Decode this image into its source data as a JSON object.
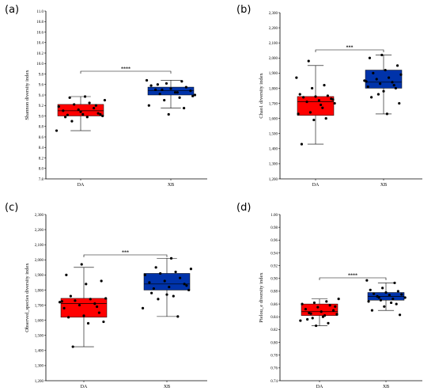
{
  "chart_data": [
    {
      "type": "box",
      "panel_label": "(a)",
      "title": "",
      "xlabel": "",
      "ylabel": "Shannon diversity index",
      "categories": [
        "DA",
        "XB"
      ],
      "ylim": [
        7.8,
        11.0
      ],
      "yticks": [
        "7.8",
        "8.0",
        "8.2",
        "8.4",
        "8.6",
        "8.8",
        "9.0",
        "9.2",
        "9.4",
        "9.6",
        "9.8",
        "10.0",
        "10.2",
        "10.4",
        "10.6",
        "10.8",
        "11.0"
      ],
      "significance": "****",
      "grid": false,
      "series": [
        {
          "category": "DA",
          "color": "#ff0000",
          "whisker_low": 8.72,
          "q1": 9.0,
          "median": 9.1,
          "q3": 9.22,
          "whisker_high": 9.37,
          "points": [
            8.72,
            8.9,
            8.98,
            9.0,
            9.02,
            9.03,
            9.05,
            9.1,
            9.12,
            9.15,
            9.18,
            9.22,
            9.25,
            9.3,
            9.35,
            9.37,
            9.03,
            8.98,
            9.08,
            9.2
          ]
        },
        {
          "category": "XB",
          "color": "#0033aa",
          "whisker_low": 9.15,
          "q1": 9.4,
          "median": 9.48,
          "q3": 9.55,
          "whisker_high": 9.68,
          "points": [
            9.03,
            9.15,
            9.2,
            9.3,
            9.35,
            9.4,
            9.42,
            9.45,
            9.48,
            9.5,
            9.52,
            9.55,
            9.58,
            9.62,
            9.66,
            9.68,
            9.5,
            9.45,
            9.38,
            9.6
          ]
        }
      ]
    },
    {
      "type": "box",
      "panel_label": "(b)",
      "title": "",
      "xlabel": "",
      "ylabel": "Chao1 diversity index",
      "categories": [
        "DA",
        "XB"
      ],
      "ylim": [
        1200,
        2300
      ],
      "yticks": [
        "1,200",
        "1,300",
        "1,400",
        "1,500",
        "1,600",
        "1,700",
        "1,800",
        "1,900",
        "2,000",
        "2,100",
        "2,200",
        "2,300"
      ],
      "significance": "***",
      "grid": false,
      "series": [
        {
          "category": "DA",
          "color": "#ff0000",
          "whisker_low": 1430,
          "q1": 1620,
          "median": 1710,
          "q3": 1745,
          "whisker_high": 1950,
          "points": [
            1430,
            1590,
            1600,
            1630,
            1640,
            1670,
            1700,
            1710,
            1720,
            1730,
            1740,
            1745,
            1750,
            1760,
            1800,
            1820,
            1870,
            1980,
            1690,
            1725
          ]
        },
        {
          "category": "XB",
          "color": "#0033aa",
          "whisker_low": 1630,
          "q1": 1800,
          "median": 1840,
          "q3": 1920,
          "whisker_high": 2020,
          "points": [
            1630,
            1700,
            1740,
            1780,
            1800,
            1810,
            1830,
            1840,
            1850,
            1860,
            1870,
            1890,
            1900,
            1920,
            1950,
            2000,
            2020,
            1820,
            1845,
            1760
          ]
        }
      ]
    },
    {
      "type": "box",
      "panel_label": "(c)",
      "title": "",
      "xlabel": "",
      "ylabel": "Observed_species diversity index",
      "categories": [
        "DA",
        "XB"
      ],
      "ylim": [
        1200,
        2300
      ],
      "yticks": [
        "1,200",
        "1,300",
        "1,400",
        "1,500",
        "1,600",
        "1,700",
        "1,800",
        "1,900",
        "2,000",
        "2,100",
        "2,200",
        "2,300"
      ],
      "significance": "***",
      "grid": false,
      "series": [
        {
          "category": "DA",
          "color": "#ff0000",
          "whisker_low": 1425,
          "q1": 1620,
          "median": 1710,
          "q3": 1745,
          "whisker_high": 1950,
          "points": [
            1425,
            1580,
            1590,
            1620,
            1630,
            1650,
            1680,
            1700,
            1710,
            1720,
            1730,
            1740,
            1745,
            1760,
            1840,
            1860,
            1900,
            1970,
            1690,
            1725
          ]
        },
        {
          "category": "XB",
          "color": "#0033aa",
          "whisker_low": 1625,
          "q1": 1800,
          "median": 1840,
          "q3": 1910,
          "whisker_high": 2010,
          "points": [
            1625,
            1680,
            1740,
            1760,
            1800,
            1810,
            1820,
            1840,
            1850,
            1860,
            1880,
            1900,
            1910,
            1920,
            1940,
            1950,
            2010,
            1830,
            1780,
            1770
          ]
        }
      ]
    },
    {
      "type": "box",
      "panel_label": "(d)",
      "title": "",
      "xlabel": "",
      "ylabel": "Pielou_e diversity index",
      "categories": [
        "DA",
        "XB"
      ],
      "ylim": [
        0.74,
        1.0
      ],
      "yticks": [
        "0.74",
        "0.76",
        "0.78",
        "0.80",
        "0.82",
        "0.84",
        "0.86",
        "0.88",
        "0.90",
        "0.92",
        "0.94",
        "0.96",
        "0.98",
        "1.00"
      ],
      "significance": "****",
      "grid": false,
      "series": [
        {
          "category": "DA",
          "color": "#ff0000",
          "whisker_low": 0.826,
          "q1": 0.842,
          "median": 0.848,
          "q3": 0.86,
          "whisker_high": 0.868,
          "points": [
            0.826,
            0.83,
            0.834,
            0.838,
            0.842,
            0.844,
            0.846,
            0.848,
            0.85,
            0.852,
            0.855,
            0.858,
            0.86,
            0.862,
            0.864,
            0.868,
            0.845,
            0.84,
            0.856,
            0.836
          ]
        },
        {
          "category": "XB",
          "color": "#0033aa",
          "whisker_low": 0.85,
          "q1": 0.866,
          "median": 0.872,
          "q3": 0.878,
          "whisker_high": 0.893,
          "points": [
            0.843,
            0.85,
            0.856,
            0.86,
            0.864,
            0.866,
            0.868,
            0.87,
            0.872,
            0.874,
            0.875,
            0.876,
            0.878,
            0.88,
            0.882,
            0.885,
            0.893,
            0.897,
            0.87,
            0.862
          ]
        }
      ]
    }
  ]
}
